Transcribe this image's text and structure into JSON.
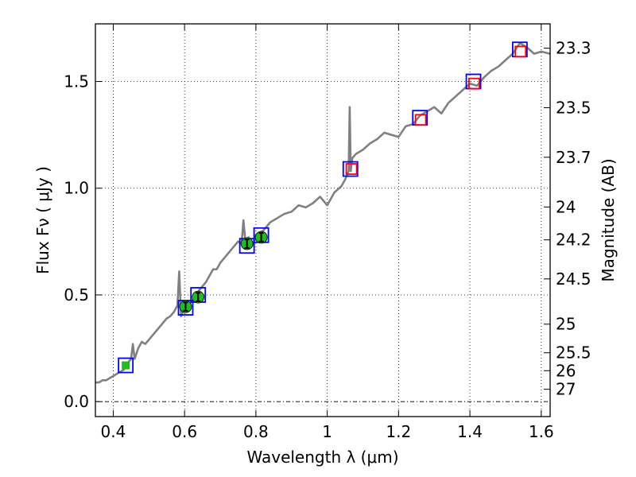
{
  "chart_data": {
    "type": "line",
    "xlabel": "Wavelength  λ (μm)",
    "ylabel": "Flux  Fν  ( μJy )",
    "y2label": "Magnitude (AB)",
    "xlim": [
      0.35,
      1.625
    ],
    "ylim": [
      -0.07,
      1.77
    ],
    "grid": true,
    "grid_style": "dotted",
    "x_ticks": [
      {
        "value": 0.4,
        "label": "0.4"
      },
      {
        "value": 0.6,
        "label": "0.6"
      },
      {
        "value": 0.8,
        "label": "0.8"
      },
      {
        "value": 1.0,
        "label": "1"
      },
      {
        "value": 1.2,
        "label": "1.2"
      },
      {
        "value": 1.4,
        "label": "1.4"
      },
      {
        "value": 1.6,
        "label": "1.6"
      }
    ],
    "y_ticks": [
      {
        "value": 0.0,
        "label": "0.0"
      },
      {
        "value": 0.5,
        "label": "0.5"
      },
      {
        "value": 1.0,
        "label": "1.0"
      },
      {
        "value": 1.5,
        "label": "1.5"
      }
    ],
    "mag_ticks": [
      {
        "flux": 1.656,
        "label": "23.3"
      },
      {
        "flux": 1.377,
        "label": "23.5"
      },
      {
        "flux": 1.145,
        "label": "23.7"
      },
      {
        "flux": 0.912,
        "label": "24"
      },
      {
        "flux": 0.758,
        "label": "24.2"
      },
      {
        "flux": 0.575,
        "label": "24.5"
      },
      {
        "flux": 0.363,
        "label": "25"
      },
      {
        "flux": 0.229,
        "label": "25.5"
      },
      {
        "flux": 0.145,
        "label": "26"
      },
      {
        "flux": 0.058,
        "label": "27"
      }
    ],
    "spectrum": {
      "color": "#808080",
      "x": [
        0.35,
        0.36,
        0.37,
        0.38,
        0.39,
        0.4,
        0.41,
        0.42,
        0.43,
        0.44,
        0.45,
        0.455,
        0.46,
        0.47,
        0.48,
        0.49,
        0.5,
        0.51,
        0.52,
        0.53,
        0.54,
        0.55,
        0.56,
        0.57,
        0.58,
        0.585,
        0.59,
        0.6,
        0.61,
        0.62,
        0.63,
        0.64,
        0.65,
        0.66,
        0.67,
        0.68,
        0.69,
        0.7,
        0.71,
        0.72,
        0.73,
        0.74,
        0.75,
        0.76,
        0.765,
        0.77,
        0.78,
        0.79,
        0.8,
        0.82,
        0.84,
        0.86,
        0.88,
        0.9,
        0.92,
        0.94,
        0.96,
        0.98,
        1.0,
        1.02,
        1.04,
        1.05,
        1.06,
        1.063,
        1.066,
        1.07,
        1.08,
        1.1,
        1.12,
        1.14,
        1.16,
        1.18,
        1.2,
        1.22,
        1.24,
        1.26,
        1.28,
        1.3,
        1.32,
        1.34,
        1.36,
        1.38,
        1.4,
        1.42,
        1.44,
        1.46,
        1.48,
        1.5,
        1.52,
        1.54,
        1.56,
        1.58,
        1.6,
        1.625
      ],
      "y": [
        0.09,
        0.09,
        0.1,
        0.1,
        0.11,
        0.12,
        0.13,
        0.14,
        0.15,
        0.18,
        0.2,
        0.27,
        0.2,
        0.25,
        0.28,
        0.27,
        0.29,
        0.31,
        0.33,
        0.35,
        0.37,
        0.39,
        0.4,
        0.42,
        0.45,
        0.61,
        0.4,
        0.44,
        0.45,
        0.47,
        0.49,
        0.52,
        0.54,
        0.56,
        0.59,
        0.62,
        0.62,
        0.65,
        0.67,
        0.69,
        0.71,
        0.73,
        0.75,
        0.74,
        0.85,
        0.76,
        0.77,
        0.73,
        0.78,
        0.8,
        0.84,
        0.86,
        0.88,
        0.89,
        0.92,
        0.91,
        0.93,
        0.96,
        0.92,
        0.98,
        1.01,
        1.04,
        1.08,
        1.38,
        1.08,
        1.14,
        1.16,
        1.18,
        1.21,
        1.23,
        1.26,
        1.25,
        1.24,
        1.29,
        1.3,
        1.34,
        1.36,
        1.38,
        1.35,
        1.4,
        1.43,
        1.46,
        1.49,
        1.48,
        1.52,
        1.55,
        1.57,
        1.6,
        1.63,
        1.68,
        1.66,
        1.63,
        1.64,
        1.63
      ]
    },
    "series": [
      {
        "marker": "square-open",
        "color": "#0000ff",
        "x": [
          0.435,
          0.603,
          0.638,
          0.775,
          0.815,
          1.065,
          1.26,
          1.41,
          1.54
        ],
        "y": [
          0.17,
          0.44,
          0.5,
          0.73,
          0.78,
          1.09,
          1.33,
          1.5,
          1.65
        ]
      },
      {
        "marker": "square-open",
        "color": "#ff0000",
        "x": [
          1.068,
          1.262,
          1.412,
          1.542
        ],
        "y": [
          1.09,
          1.32,
          1.49,
          1.64
        ]
      },
      {
        "marker": "circle-filled",
        "color": "#22bb22",
        "error_color": "#000000",
        "x": [
          0.603,
          0.638,
          0.775,
          0.815
        ],
        "y": [
          0.445,
          0.49,
          0.74,
          0.77
        ],
        "yerr": [
          0.02,
          0.02,
          0.02,
          0.02
        ]
      },
      {
        "marker": "square-filled-small",
        "color": "#22bb22",
        "x": [
          0.435
        ],
        "y": [
          0.17
        ]
      }
    ]
  }
}
